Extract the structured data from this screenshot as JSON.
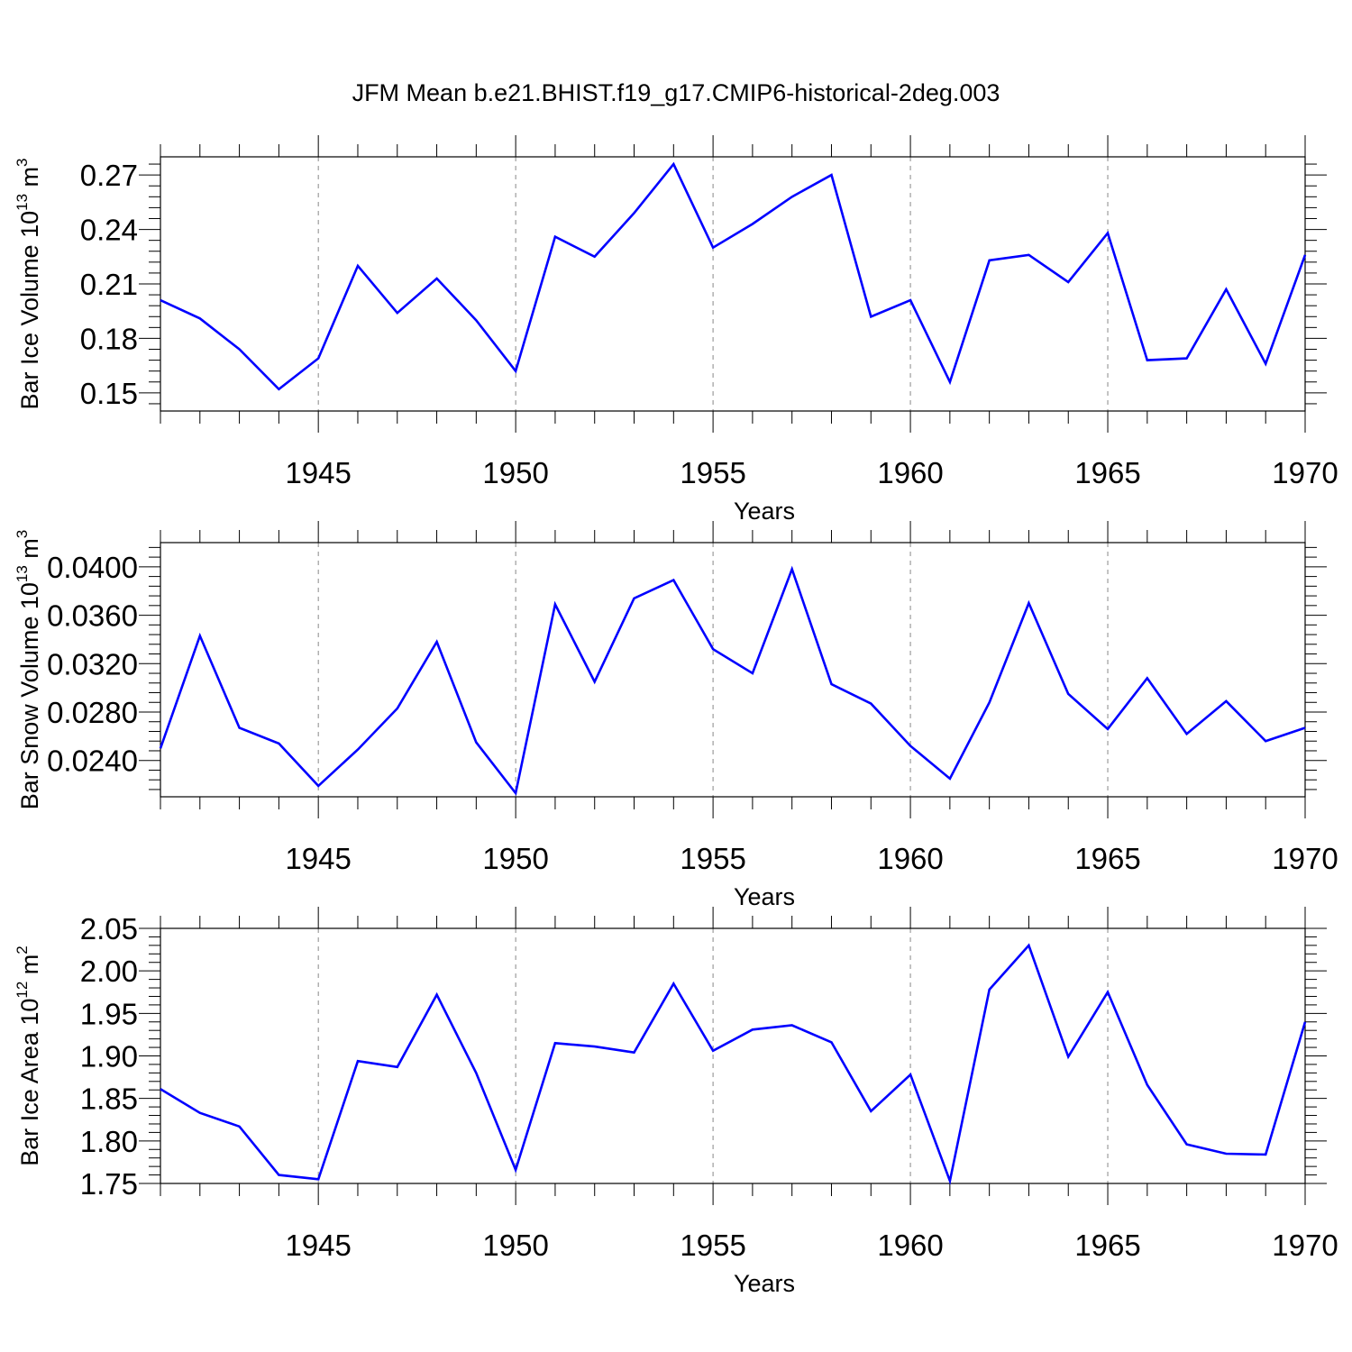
{
  "title": "JFM Mean b.e21.BHIST.f19_g17.CMIP6-historical-2deg.003",
  "colors": {
    "line": "#0000ff",
    "axis": "#000000",
    "grid": "#888888"
  },
  "chart_data": [
    {
      "type": "line",
      "ylabel": {
        "text": "Bar Ice Volume 10",
        "exp": "13",
        "unit": " m",
        "unit_exp": "3"
      },
      "xlabel": "Years",
      "xlim": [
        1941,
        1970
      ],
      "ylim": [
        0.14,
        0.28
      ],
      "xticks": [
        1945,
        1950,
        1955,
        1960,
        1965,
        1970
      ],
      "yticks": [
        0.15,
        0.18,
        0.21,
        0.24,
        0.27
      ],
      "ytick_labels": [
        "0.15",
        "0.18",
        "0.21",
        "0.24",
        "0.27"
      ],
      "x": [
        1941,
        1942,
        1943,
        1944,
        1945,
        1946,
        1947,
        1948,
        1949,
        1950,
        1951,
        1952,
        1953,
        1954,
        1955,
        1956,
        1957,
        1958,
        1959,
        1960,
        1961,
        1962,
        1963,
        1964,
        1965,
        1966,
        1967,
        1968,
        1969,
        1970
      ],
      "values": [
        0.201,
        0.191,
        0.174,
        0.152,
        0.169,
        0.22,
        0.194,
        0.213,
        0.19,
        0.162,
        0.236,
        0.225,
        0.249,
        0.276,
        0.23,
        0.243,
        0.258,
        0.27,
        0.192,
        0.201,
        0.156,
        0.223,
        0.226,
        0.211,
        0.238,
        0.168,
        0.169,
        0.207,
        0.166,
        0.226
      ]
    },
    {
      "type": "line",
      "ylabel": {
        "text": "Bar Snow Volume 10",
        "exp": "13",
        "unit": " m",
        "unit_exp": "3"
      },
      "xlabel": "Years",
      "xlim": [
        1941,
        1970
      ],
      "ylim": [
        0.021,
        0.042
      ],
      "xticks": [
        1945,
        1950,
        1955,
        1960,
        1965,
        1970
      ],
      "yticks": [
        0.024,
        0.028,
        0.032,
        0.036,
        0.04
      ],
      "ytick_labels": [
        "0.0240",
        "0.0280",
        "0.0320",
        "0.0360",
        "0.0400"
      ],
      "x": [
        1941,
        1942,
        1943,
        1944,
        1945,
        1946,
        1947,
        1948,
        1949,
        1950,
        1951,
        1952,
        1953,
        1954,
        1955,
        1956,
        1957,
        1958,
        1959,
        1960,
        1961,
        1962,
        1963,
        1964,
        1965,
        1966,
        1967,
        1968,
        1969,
        1970
      ],
      "values": [
        0.025,
        0.0343,
        0.0267,
        0.0254,
        0.0219,
        0.0249,
        0.0283,
        0.0338,
        0.0255,
        0.0213,
        0.0369,
        0.0305,
        0.0374,
        0.0389,
        0.0332,
        0.0312,
        0.0398,
        0.0303,
        0.0287,
        0.0252,
        0.0225,
        0.0288,
        0.037,
        0.0295,
        0.0266,
        0.0308,
        0.0262,
        0.0289,
        0.0256,
        0.0267
      ]
    },
    {
      "type": "line",
      "ylabel": {
        "text": "Bar Ice Area 10",
        "exp": "12",
        "unit": " m",
        "unit_exp": "2"
      },
      "xlabel": "Years",
      "xlim": [
        1941,
        1970
      ],
      "ylim": [
        1.75,
        2.05
      ],
      "xticks": [
        1945,
        1950,
        1955,
        1960,
        1965,
        1970
      ],
      "yticks": [
        1.75,
        1.8,
        1.85,
        1.9,
        1.95,
        2.0,
        2.05
      ],
      "ytick_labels": [
        "1.75",
        "1.80",
        "1.85",
        "1.90",
        "1.95",
        "2.00",
        "2.05"
      ],
      "x": [
        1941,
        1942,
        1943,
        1944,
        1945,
        1946,
        1947,
        1948,
        1949,
        1950,
        1951,
        1952,
        1953,
        1954,
        1955,
        1956,
        1957,
        1958,
        1959,
        1960,
        1961,
        1962,
        1963,
        1964,
        1965,
        1966,
        1967,
        1968,
        1969,
        1970
      ],
      "values": [
        1.861,
        1.833,
        1.817,
        1.76,
        1.755,
        1.894,
        1.887,
        1.972,
        1.88,
        1.766,
        1.915,
        1.911,
        1.904,
        1.985,
        1.906,
        1.931,
        1.936,
        1.916,
        1.835,
        1.878,
        1.753,
        1.978,
        2.03,
        1.899,
        1.975,
        1.866,
        1.796,
        1.785,
        1.784,
        1.94
      ]
    }
  ]
}
